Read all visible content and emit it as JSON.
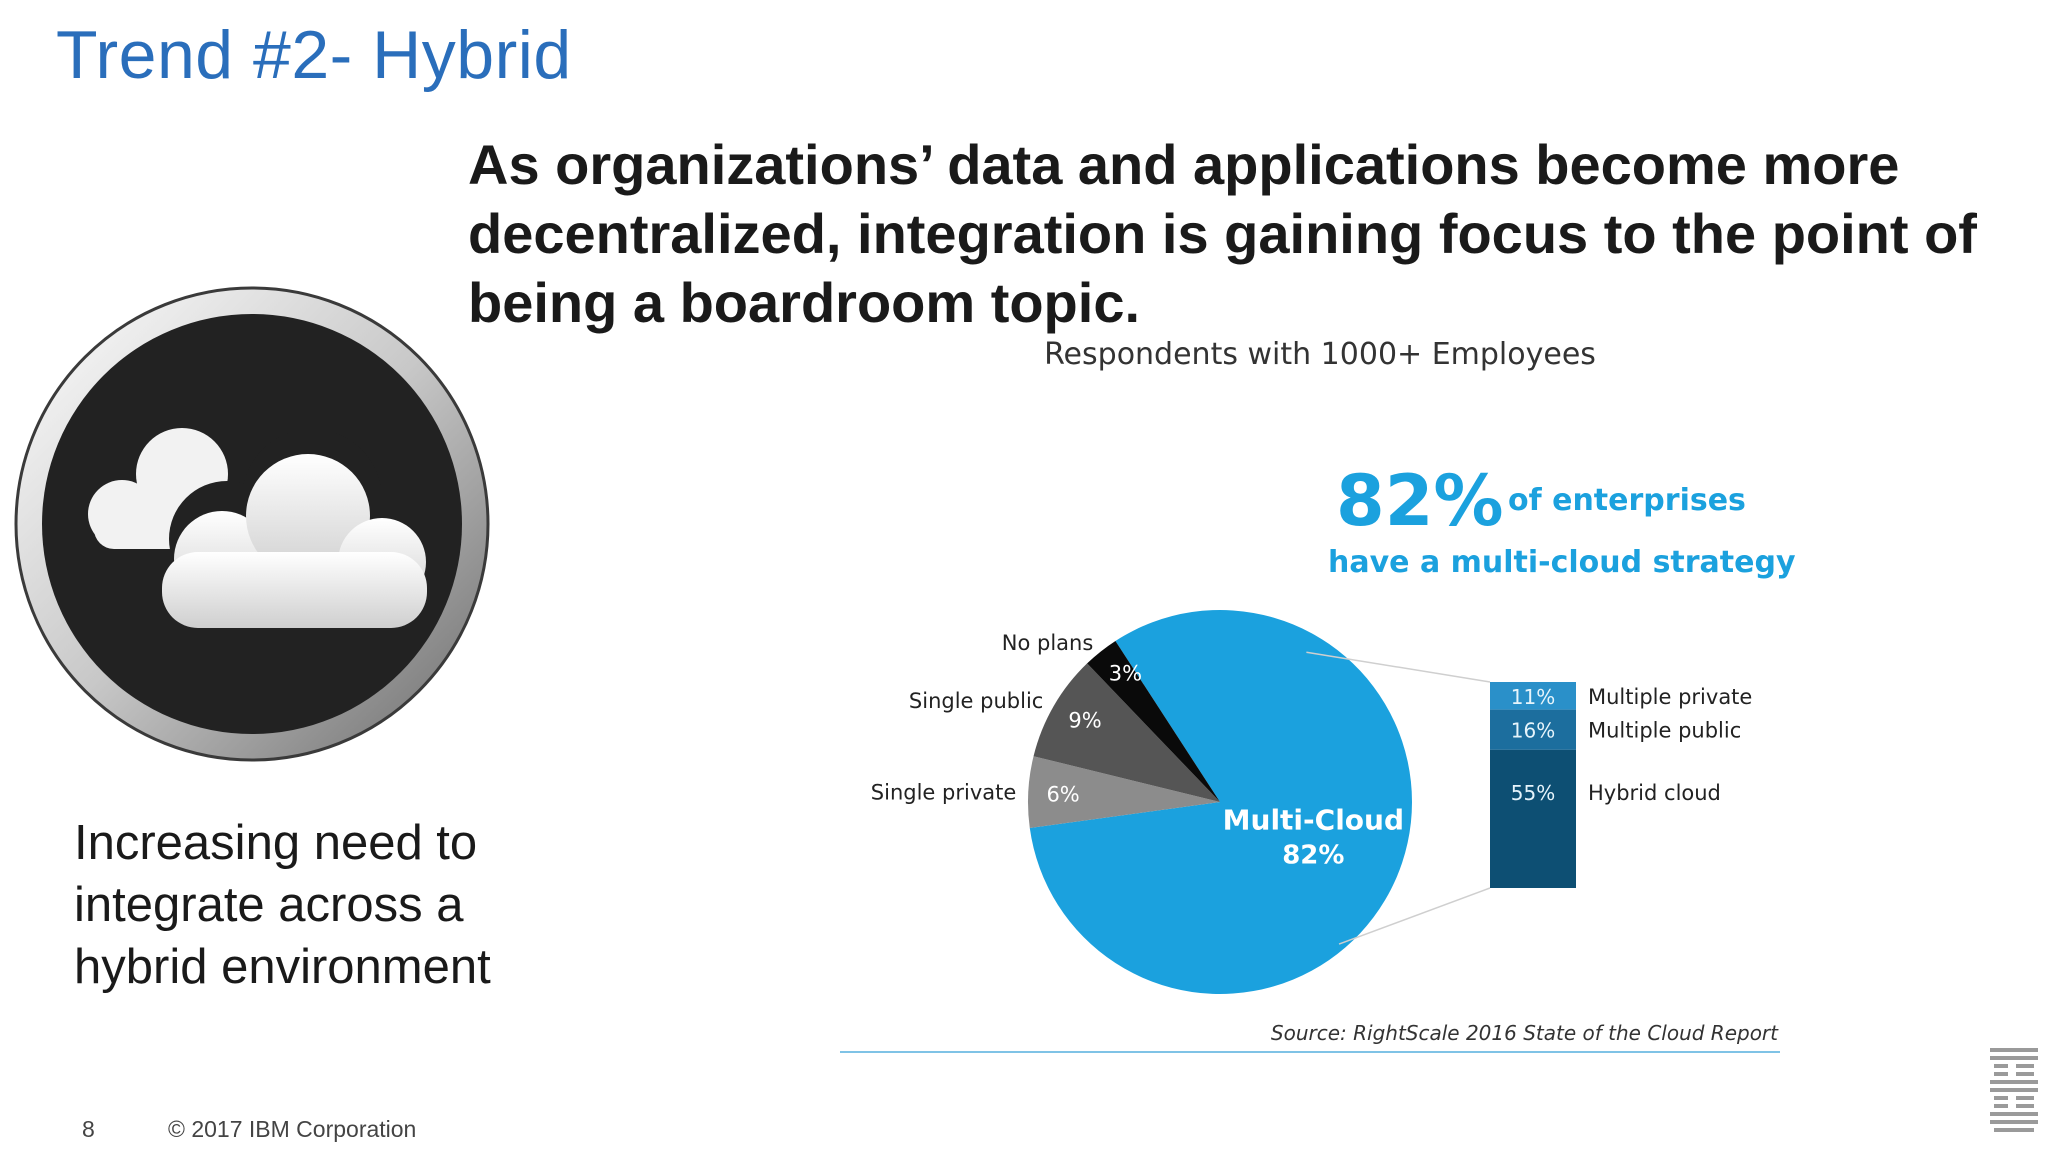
{
  "slide": {
    "title": "Trend #2- Hybrid",
    "headline": "As organizations’ data and applications become more decentralized, integration is gaining focus to the point of being a boardroom topic.",
    "side_text": "Increasing need to integrate across a hybrid environment",
    "page_number": "8",
    "copyright": "© 2017 IBM Corporation"
  },
  "icons": {
    "cloud_badge": "cloud-icon",
    "logo": "ibm-logo-icon"
  },
  "chart_data": {
    "type": "pie",
    "subtitle": "Respondents with 1000+ Employees",
    "headline_value": "82%",
    "headline_text_1": "of enterprises",
    "headline_text_2": "have a multi-cloud strategy",
    "slices": [
      {
        "label": "Multi-Cloud",
        "value": 82,
        "value_label": "82%",
        "color": "#1ba1de"
      },
      {
        "label": "Single private",
        "value": 6,
        "value_label": "6%",
        "color": "#8c8c8c"
      },
      {
        "label": "Single public",
        "value": 9,
        "value_label": "9%",
        "color": "#555555"
      },
      {
        "label": "No plans",
        "value": 3,
        "value_label": "3%",
        "color": "#0a0a0a"
      }
    ],
    "breakdown": [
      {
        "label": "Multiple private",
        "value": 11,
        "value_label": "11%",
        "color": "#2a90c9"
      },
      {
        "label": "Multiple public",
        "value": 16,
        "value_label": "16%",
        "color": "#1c6e9e"
      },
      {
        "label": "Hybrid cloud",
        "value": 55,
        "value_label": "55%",
        "color": "#0d4f73"
      }
    ],
    "source": "Source: RightScale 2016 State of the Cloud Report",
    "accent_color": "#1ba1de"
  }
}
